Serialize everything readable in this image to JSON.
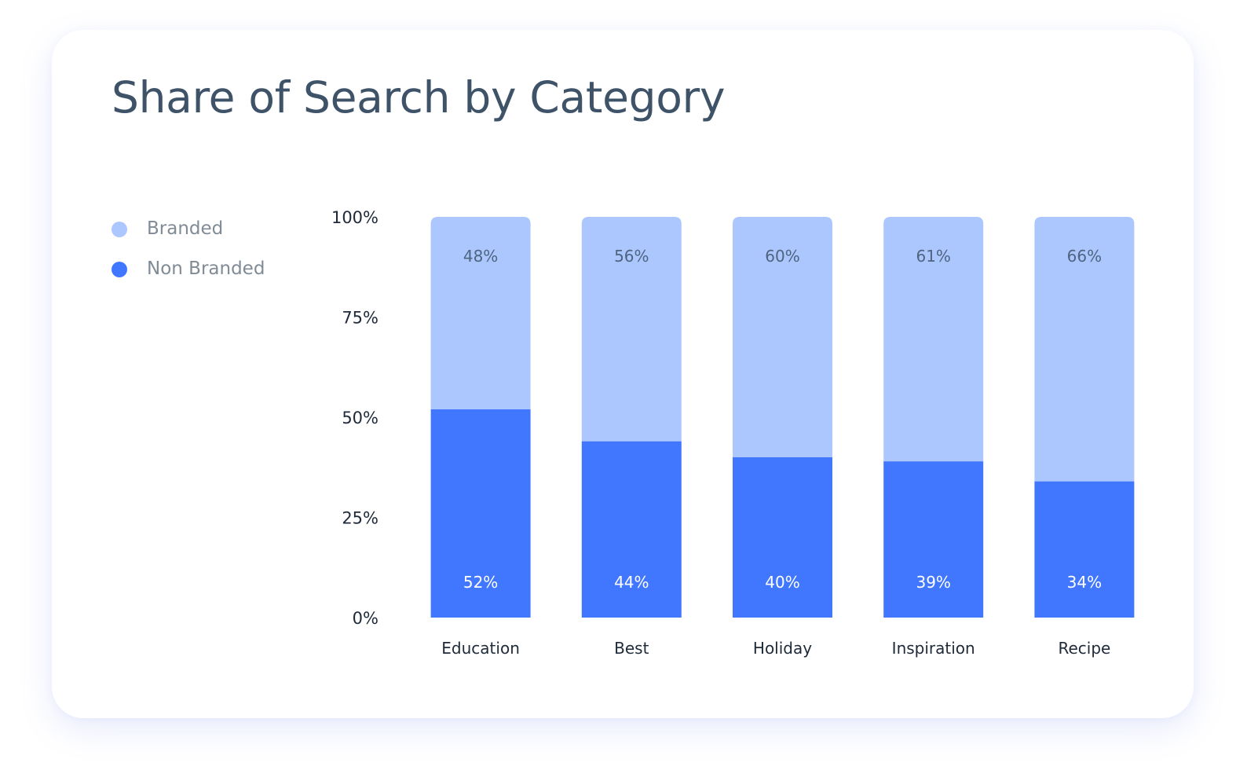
{
  "chart_data": {
    "type": "bar",
    "stacked": true,
    "title": "Share of Search by Category",
    "categories": [
      "Education",
      "Best",
      "Holiday",
      "Inspiration",
      "Recipe"
    ],
    "series": [
      {
        "name": "Non Branded",
        "values": [
          52,
          44,
          40,
          39,
          34
        ],
        "labels": [
          "52%",
          "44%",
          "40%",
          "39%",
          "34%"
        ],
        "color": "#4177ff",
        "label_color": "#ffffff"
      },
      {
        "name": "Branded",
        "values": [
          48,
          56,
          60,
          61,
          66
        ],
        "labels": [
          "48%",
          "56%",
          "60%",
          "61%",
          "66%"
        ],
        "color": "#abc7fd",
        "label_color": "#4f6480"
      }
    ],
    "yticks": [
      0,
      25,
      50,
      75,
      100
    ],
    "ytick_labels": [
      "0%",
      "25%",
      "50%",
      "75%",
      "100%"
    ],
    "ylim": [
      0,
      100
    ],
    "legend_position": "left",
    "grid": false
  },
  "legend": {
    "items": [
      {
        "label": "Branded",
        "color": "#abc7fd"
      },
      {
        "label": "Non Branded",
        "color": "#4177ff"
      }
    ]
  }
}
